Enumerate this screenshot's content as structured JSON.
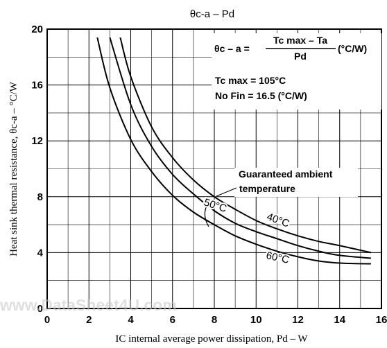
{
  "chart_data": {
    "type": "line",
    "title": "θc-a – Pd",
    "xlabel": "IC internal average power dissipation, Pd – W",
    "ylabel": "Heat sink thermal resistance, θc-a – °C/W",
    "xlim": [
      0,
      16
    ],
    "ylim": [
      0,
      20
    ],
    "x_ticks": [
      "0",
      "2",
      "4",
      "6",
      "8",
      "10",
      "12",
      "14",
      "16"
    ],
    "y_ticks": [
      "0",
      "4",
      "8",
      "12",
      "16",
      "20"
    ],
    "grid": true,
    "formula": {
      "lhs": "θc – a =",
      "numerator": "Tc max – Ta",
      "denominator": "Pd",
      "unit": "(°C/W)"
    },
    "notes": [
      "Tc max = 105°C",
      "No Fin = 16.5 (°C/W)"
    ],
    "annotation": [
      "Guaranteed ambient",
      "temperature"
    ],
    "watermark": "www.DataSheet4U.com",
    "series": [
      {
        "name": "40°C",
        "color": "#000000",
        "x": [
          3.5,
          4.0,
          5.0,
          6.0,
          7.0,
          8.0,
          9.0,
          10.0,
          11.0,
          12.0,
          13.0,
          14.0,
          15.5
        ],
        "y": [
          19.4,
          16.6,
          13.0,
          10.8,
          9.2,
          8.0,
          7.1,
          6.3,
          5.7,
          5.2,
          4.8,
          4.5,
          4.0
        ]
      },
      {
        "name": "50°C",
        "color": "#000000",
        "x": [
          3.0,
          4.0,
          5.0,
          6.0,
          7.0,
          8.0,
          9.0,
          10.0,
          11.0,
          12.0,
          13.0,
          14.0,
          15.5
        ],
        "y": [
          19.4,
          14.6,
          11.6,
          9.6,
          8.2,
          7.0,
          6.1,
          5.5,
          5.0,
          4.5,
          4.1,
          3.8,
          3.6
        ]
      },
      {
        "name": "60°C",
        "color": "#000000",
        "x": [
          2.4,
          3.0,
          4.0,
          5.0,
          6.0,
          7.0,
          8.0,
          9.0,
          10.0,
          11.0,
          12.0,
          13.0,
          14.0,
          15.5
        ],
        "y": [
          19.4,
          15.8,
          12.1,
          9.8,
          8.1,
          6.9,
          6.0,
          5.2,
          4.6,
          4.1,
          3.7,
          3.4,
          3.25,
          3.2
        ]
      }
    ]
  }
}
